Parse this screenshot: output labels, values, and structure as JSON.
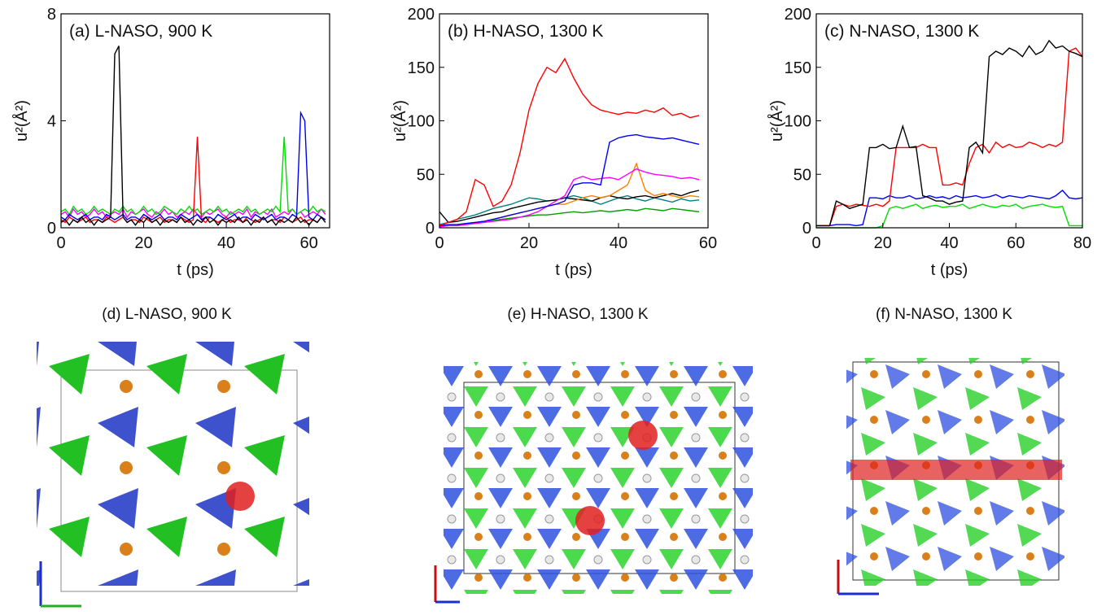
{
  "chart_data": [
    {
      "type": "line",
      "title": "(a) L-NASO, 900 K",
      "xlabel": "t (ps)",
      "ylabel": "u²(Å²)",
      "xlim": [
        0,
        65
      ],
      "xticks": [
        0,
        20,
        40,
        60
      ],
      "ylim": [
        0,
        8
      ],
      "yticks": [
        0,
        4,
        8
      ],
      "x": [
        0,
        1,
        2,
        3,
        4,
        5,
        6,
        7,
        8,
        9,
        10,
        11,
        12,
        13,
        14,
        15,
        16,
        17,
        18,
        19,
        20,
        21,
        22,
        23,
        24,
        25,
        26,
        27,
        28,
        29,
        30,
        31,
        32,
        33,
        34,
        35,
        36,
        37,
        38,
        39,
        40,
        41,
        42,
        43,
        44,
        45,
        46,
        47,
        48,
        49,
        50,
        51,
        52,
        53,
        54,
        55,
        56,
        57,
        58,
        59,
        60,
        61,
        62,
        63,
        64
      ],
      "series": [
        {
          "color": "#ff00ff",
          "values": [
            0.5,
            0.6,
            0.4,
            0.7,
            0.5,
            0.6,
            0.4,
            0.5,
            0.7,
            0.5,
            0.6,
            0.4,
            0.5,
            0.6,
            0.5,
            0.7,
            0.4,
            0.6,
            0.5,
            0.6,
            0.7,
            0.5,
            0.4,
            0.6,
            0.5,
            0.7,
            0.5,
            0.6,
            0.4,
            0.5,
            0.6,
            0.5,
            0.7,
            0.5,
            0.4,
            0.6,
            0.5,
            0.6,
            0.7,
            0.5,
            0.4,
            0.6,
            0.5,
            0.6,
            0.5,
            0.7,
            0.4,
            0.6,
            0.5,
            0.6,
            0.5,
            0.7,
            0.4,
            0.5,
            0.6,
            0.5,
            0.7,
            0.5,
            0.6,
            0.4,
            0.5,
            0.6,
            0.5,
            0.7,
            0.5
          ]
        },
        {
          "color": "#00dd00",
          "values": [
            0.6,
            0.7,
            0.5,
            0.8,
            0.6,
            0.7,
            0.5,
            0.6,
            0.8,
            0.6,
            0.7,
            0.6,
            0.5,
            0.7,
            0.6,
            0.8,
            0.6,
            0.7,
            0.5,
            0.6,
            0.8,
            0.6,
            0.7,
            0.5,
            0.6,
            0.8,
            0.7,
            0.6,
            0.5,
            0.7,
            0.6,
            0.8,
            0.6,
            0.7,
            0.5,
            0.6,
            0.7,
            0.6,
            0.8,
            0.6,
            0.7,
            0.5,
            0.6,
            0.7,
            0.6,
            0.8,
            0.6,
            0.7,
            0.5,
            0.6,
            0.7,
            0.6,
            0.8,
            0.6,
            3.4,
            0.6,
            0.7,
            0.5,
            0.6,
            0.7,
            0.6,
            0.8,
            0.6,
            0.7,
            0.6
          ]
        },
        {
          "color": "#ff0000",
          "values": [
            0.3,
            0.2,
            0.4,
            0.3,
            0.2,
            0.3,
            0.4,
            0.2,
            0.3,
            0.3,
            0.2,
            0.4,
            0.3,
            0.2,
            0.3,
            0.4,
            0.2,
            0.3,
            0.3,
            0.2,
            0.4,
            0.3,
            0.2,
            0.3,
            0.4,
            0.2,
            0.3,
            0.3,
            0.2,
            0.4,
            0.3,
            0.2,
            0.3,
            3.4,
            0.3,
            0.2,
            0.4,
            0.3,
            0.2,
            0.3,
            0.4,
            0.2,
            0.3,
            0.3,
            0.2,
            0.4,
            0.3,
            0.2,
            0.3,
            0.4,
            0.2,
            0.3,
            0.3,
            0.2,
            0.4,
            0.3,
            0.2,
            0.3,
            0.4,
            0.2,
            0.3,
            0.3,
            0.2,
            0.4,
            0.3
          ]
        },
        {
          "color": "#0000ee",
          "values": [
            0.4,
            0.3,
            0.5,
            0.4,
            0.3,
            0.4,
            0.5,
            0.3,
            0.4,
            0.4,
            0.3,
            0.5,
            0.4,
            0.3,
            0.4,
            0.5,
            0.3,
            0.4,
            0.4,
            0.3,
            0.5,
            0.4,
            0.3,
            0.4,
            0.5,
            0.3,
            0.4,
            0.4,
            0.3,
            0.5,
            0.4,
            0.3,
            0.4,
            0.5,
            0.3,
            0.4,
            0.4,
            0.3,
            0.5,
            0.4,
            0.3,
            0.4,
            0.5,
            0.3,
            0.4,
            0.4,
            0.3,
            0.5,
            0.4,
            0.3,
            0.4,
            0.5,
            0.3,
            0.4,
            0.4,
            0.3,
            0.5,
            0.4,
            4.3,
            4.0,
            0.4,
            0.3,
            0.5,
            0.4,
            0.3
          ]
        },
        {
          "color": "#000000",
          "values": [
            0.2,
            0.3,
            0.1,
            0.3,
            0.2,
            0.4,
            0.2,
            0.3,
            0.1,
            0.3,
            0.2,
            0.3,
            0.4,
            6.5,
            6.8,
            0.4,
            0.2,
            0.3,
            0.1,
            0.3,
            0.2,
            0.4,
            0.2,
            0.3,
            0.1,
            0.3,
            0.2,
            0.3,
            0.2,
            0.4,
            0.2,
            0.3,
            0.1,
            0.3,
            0.2,
            0.4,
            0.2,
            0.3,
            0.1,
            0.3,
            0.2,
            0.3,
            0.2,
            0.4,
            0.2,
            0.3,
            0.1,
            0.3,
            0.2,
            0.4,
            0.2,
            0.3,
            0.1,
            0.3,
            0.2,
            0.3,
            0.2,
            0.4,
            0.2,
            0.3,
            0.1,
            0.3,
            0.2,
            0.4,
            0.2
          ]
        }
      ]
    },
    {
      "type": "line",
      "title": "(b) H-NASO, 1300 K",
      "xlabel": "t (ps)",
      "ylabel": "u²(Å²)",
      "xlim": [
        0,
        60
      ],
      "xticks": [
        0,
        20,
        40,
        60
      ],
      "ylim": [
        0,
        200
      ],
      "yticks": [
        0,
        50,
        100,
        150,
        200
      ],
      "x": [
        0,
        2,
        4,
        6,
        8,
        10,
        12,
        14,
        16,
        18,
        20,
        22,
        24,
        26,
        28,
        30,
        32,
        34,
        36,
        38,
        40,
        42,
        44,
        46,
        48,
        50,
        52,
        54,
        56,
        58
      ],
      "series": [
        {
          "color": "#00a000",
          "values": [
            1,
            2,
            3,
            4,
            5,
            6,
            7,
            8,
            9,
            10,
            11,
            12,
            12,
            13,
            14,
            15,
            14,
            15,
            16,
            15,
            16,
            17,
            16,
            18,
            17,
            16,
            18,
            17,
            16,
            15
          ]
        },
        {
          "color": "#008080",
          "values": [
            3,
            5,
            8,
            10,
            12,
            15,
            18,
            20,
            22,
            25,
            28,
            27,
            25,
            26,
            28,
            30,
            28,
            25,
            22,
            25,
            28,
            30,
            27,
            25,
            28,
            26,
            24,
            27,
            25,
            26
          ]
        },
        {
          "color": "#000000",
          "values": [
            15,
            5,
            6,
            8,
            10,
            12,
            14,
            15,
            18,
            20,
            22,
            24,
            25,
            26,
            28,
            27,
            26,
            25,
            28,
            30,
            28,
            27,
            29,
            30,
            28,
            30,
            32,
            30,
            33,
            35
          ]
        },
        {
          "color": "#ff8000",
          "values": [
            1,
            2,
            3,
            4,
            5,
            6,
            8,
            10,
            12,
            14,
            16,
            18,
            20,
            22,
            22,
            25,
            28,
            30,
            28,
            30,
            35,
            40,
            60,
            35,
            30,
            32,
            30,
            28,
            30,
            29
          ]
        },
        {
          "color": "#ff00ff",
          "values": [
            1,
            2,
            2,
            3,
            4,
            5,
            6,
            7,
            8,
            10,
            12,
            15,
            20,
            25,
            30,
            45,
            48,
            45,
            46,
            47,
            45,
            50,
            55,
            52,
            50,
            49,
            48,
            46,
            47,
            45
          ]
        },
        {
          "color": "#0000ee",
          "values": [
            2,
            3,
            3,
            4,
            5,
            6,
            8,
            10,
            12,
            14,
            16,
            18,
            20,
            22,
            25,
            40,
            42,
            42,
            40,
            80,
            84,
            86,
            87,
            85,
            84,
            83,
            84,
            82,
            80,
            78
          ]
        },
        {
          "color": "#ff0000",
          "values": [
            2,
            5,
            8,
            15,
            45,
            40,
            20,
            25,
            40,
            70,
            110,
            135,
            150,
            145,
            158,
            140,
            125,
            115,
            110,
            108,
            106,
            108,
            107,
            110,
            108,
            112,
            105,
            107,
            103,
            105
          ]
        }
      ]
    },
    {
      "type": "line",
      "title": "(c) N-NASO, 1300 K",
      "xlabel": "t (ps)",
      "ylabel": "u²(Å²)",
      "xlim": [
        0,
        80
      ],
      "xticks": [
        0,
        20,
        40,
        60,
        80
      ],
      "ylim": [
        0,
        200
      ],
      "yticks": [
        0,
        50,
        100,
        150,
        200
      ],
      "x": [
        0,
        2,
        4,
        6,
        8,
        10,
        12,
        14,
        16,
        18,
        20,
        22,
        24,
        26,
        28,
        30,
        32,
        34,
        36,
        38,
        40,
        42,
        44,
        46,
        48,
        50,
        52,
        54,
        56,
        58,
        60,
        62,
        64,
        66,
        68,
        70,
        72,
        74,
        76,
        78,
        80
      ],
      "series": [
        {
          "color": "#00dd00",
          "values": [
            0,
            0,
            0,
            0,
            0,
            0,
            0,
            0,
            0,
            0,
            2,
            18,
            20,
            18,
            20,
            22,
            18,
            20,
            21,
            19,
            20,
            20,
            22,
            18,
            20,
            22,
            20,
            19,
            21,
            20,
            22,
            18,
            20,
            21,
            22,
            20,
            19,
            20,
            2,
            2,
            2
          ]
        },
        {
          "color": "#0000ee",
          "values": [
            2,
            2,
            2,
            3,
            3,
            3,
            2,
            3,
            28,
            28,
            27,
            30,
            28,
            28,
            30,
            27,
            28,
            30,
            28,
            29,
            27,
            30,
            28,
            29,
            30,
            28,
            29,
            31,
            28,
            30,
            29,
            28,
            30,
            29,
            28,
            27,
            30,
            35,
            28,
            27,
            28
          ]
        },
        {
          "color": "#ff0000",
          "values": [
            2,
            2,
            2,
            20,
            22,
            20,
            22,
            21,
            20,
            22,
            20,
            25,
            75,
            75,
            75,
            75,
            78,
            75,
            75,
            40,
            40,
            42,
            40,
            60,
            75,
            78,
            70,
            80,
            75,
            78,
            75,
            76,
            80,
            78,
            75,
            78,
            76,
            80,
            165,
            168,
            160
          ]
        },
        {
          "color": "#000000",
          "values": [
            2,
            2,
            2,
            25,
            22,
            18,
            20,
            22,
            75,
            75,
            78,
            74,
            75,
            95,
            75,
            76,
            30,
            28,
            25,
            25,
            22,
            24,
            25,
            75,
            80,
            70,
            160,
            165,
            162,
            168,
            165,
            160,
            170,
            162,
            165,
            175,
            168,
            170,
            165,
            163,
            160
          ]
        }
      ]
    }
  ],
  "structures": [
    {
      "caption": "(d) L-NASO, 900 K"
    },
    {
      "caption": "(e) H-NASO, 1300 K"
    },
    {
      "caption": "(f) N-NASO, 1300 K"
    }
  ]
}
